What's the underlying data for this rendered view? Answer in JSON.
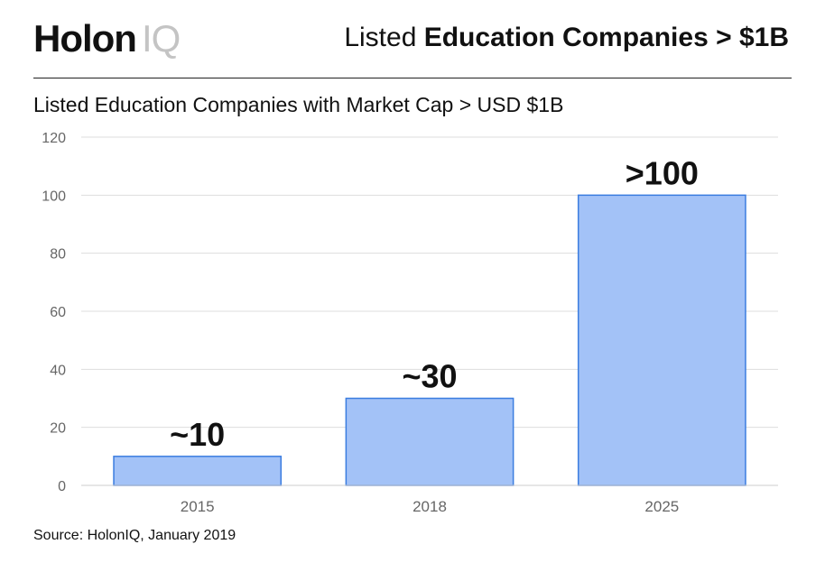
{
  "header": {
    "logo_primary": "Holon",
    "logo_secondary": "IQ",
    "title_light": "Listed ",
    "title_bold": "Education Companies > $1B"
  },
  "chart_data": {
    "type": "bar",
    "title": "Listed Education Companies with Market Cap > USD $1B",
    "categories": [
      "2015",
      "2018",
      "2025"
    ],
    "values": [
      10,
      30,
      100
    ],
    "data_labels": [
      "~10",
      "~30",
      ">100"
    ],
    "ylim": [
      0,
      120
    ],
    "yticks": [
      0,
      20,
      40,
      60,
      80,
      100,
      120
    ],
    "xlabel": "",
    "ylabel": "",
    "grid": true,
    "colors": {
      "bar_fill": "#a3c2f7",
      "bar_stroke": "#3b7de0",
      "grid": "#dddddd"
    }
  },
  "footer": {
    "source": "Source: HolonIQ, January 2019"
  }
}
